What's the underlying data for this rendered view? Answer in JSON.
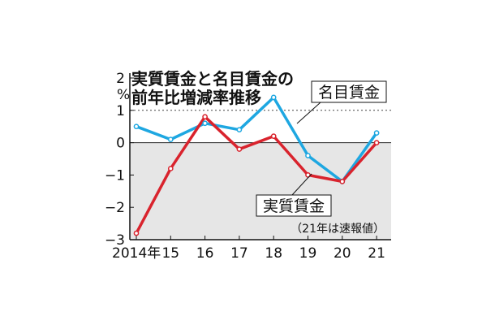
{
  "chart_data": {
    "type": "line",
    "title_lines": [
      "実質賃金と名目賃金の",
      "前年比増減率推移"
    ],
    "ylabel": "%",
    "ylim": [
      -3,
      2
    ],
    "yticks": [
      {
        "value": 2,
        "label": "2"
      },
      {
        "value": 1,
        "label": "1"
      },
      {
        "value": 0,
        "label": "0"
      },
      {
        "value": -1,
        "label": "−1"
      },
      {
        "value": -2,
        "label": "−2"
      },
      {
        "value": -3,
        "label": "−3"
      }
    ],
    "categories": [
      "2014年",
      "15",
      "16",
      "17",
      "18",
      "19",
      "20",
      "21"
    ],
    "x": [
      2014,
      2015,
      2016,
      2017,
      2018,
      2019,
      2020,
      2021
    ],
    "reference_line": 1,
    "negative_region_shaded": true,
    "series": [
      {
        "name": "名目賃金",
        "color": "#1ea7e1",
        "values": [
          0.5,
          0.1,
          0.6,
          0.4,
          1.4,
          -0.4,
          -1.2,
          0.3
        ]
      },
      {
        "name": "実質賃金",
        "color": "#d9232d",
        "values": [
          -2.8,
          -0.8,
          0.8,
          -0.2,
          0.2,
          -1.0,
          -1.2,
          0.0
        ]
      }
    ],
    "note": "（21年は速報値）"
  }
}
